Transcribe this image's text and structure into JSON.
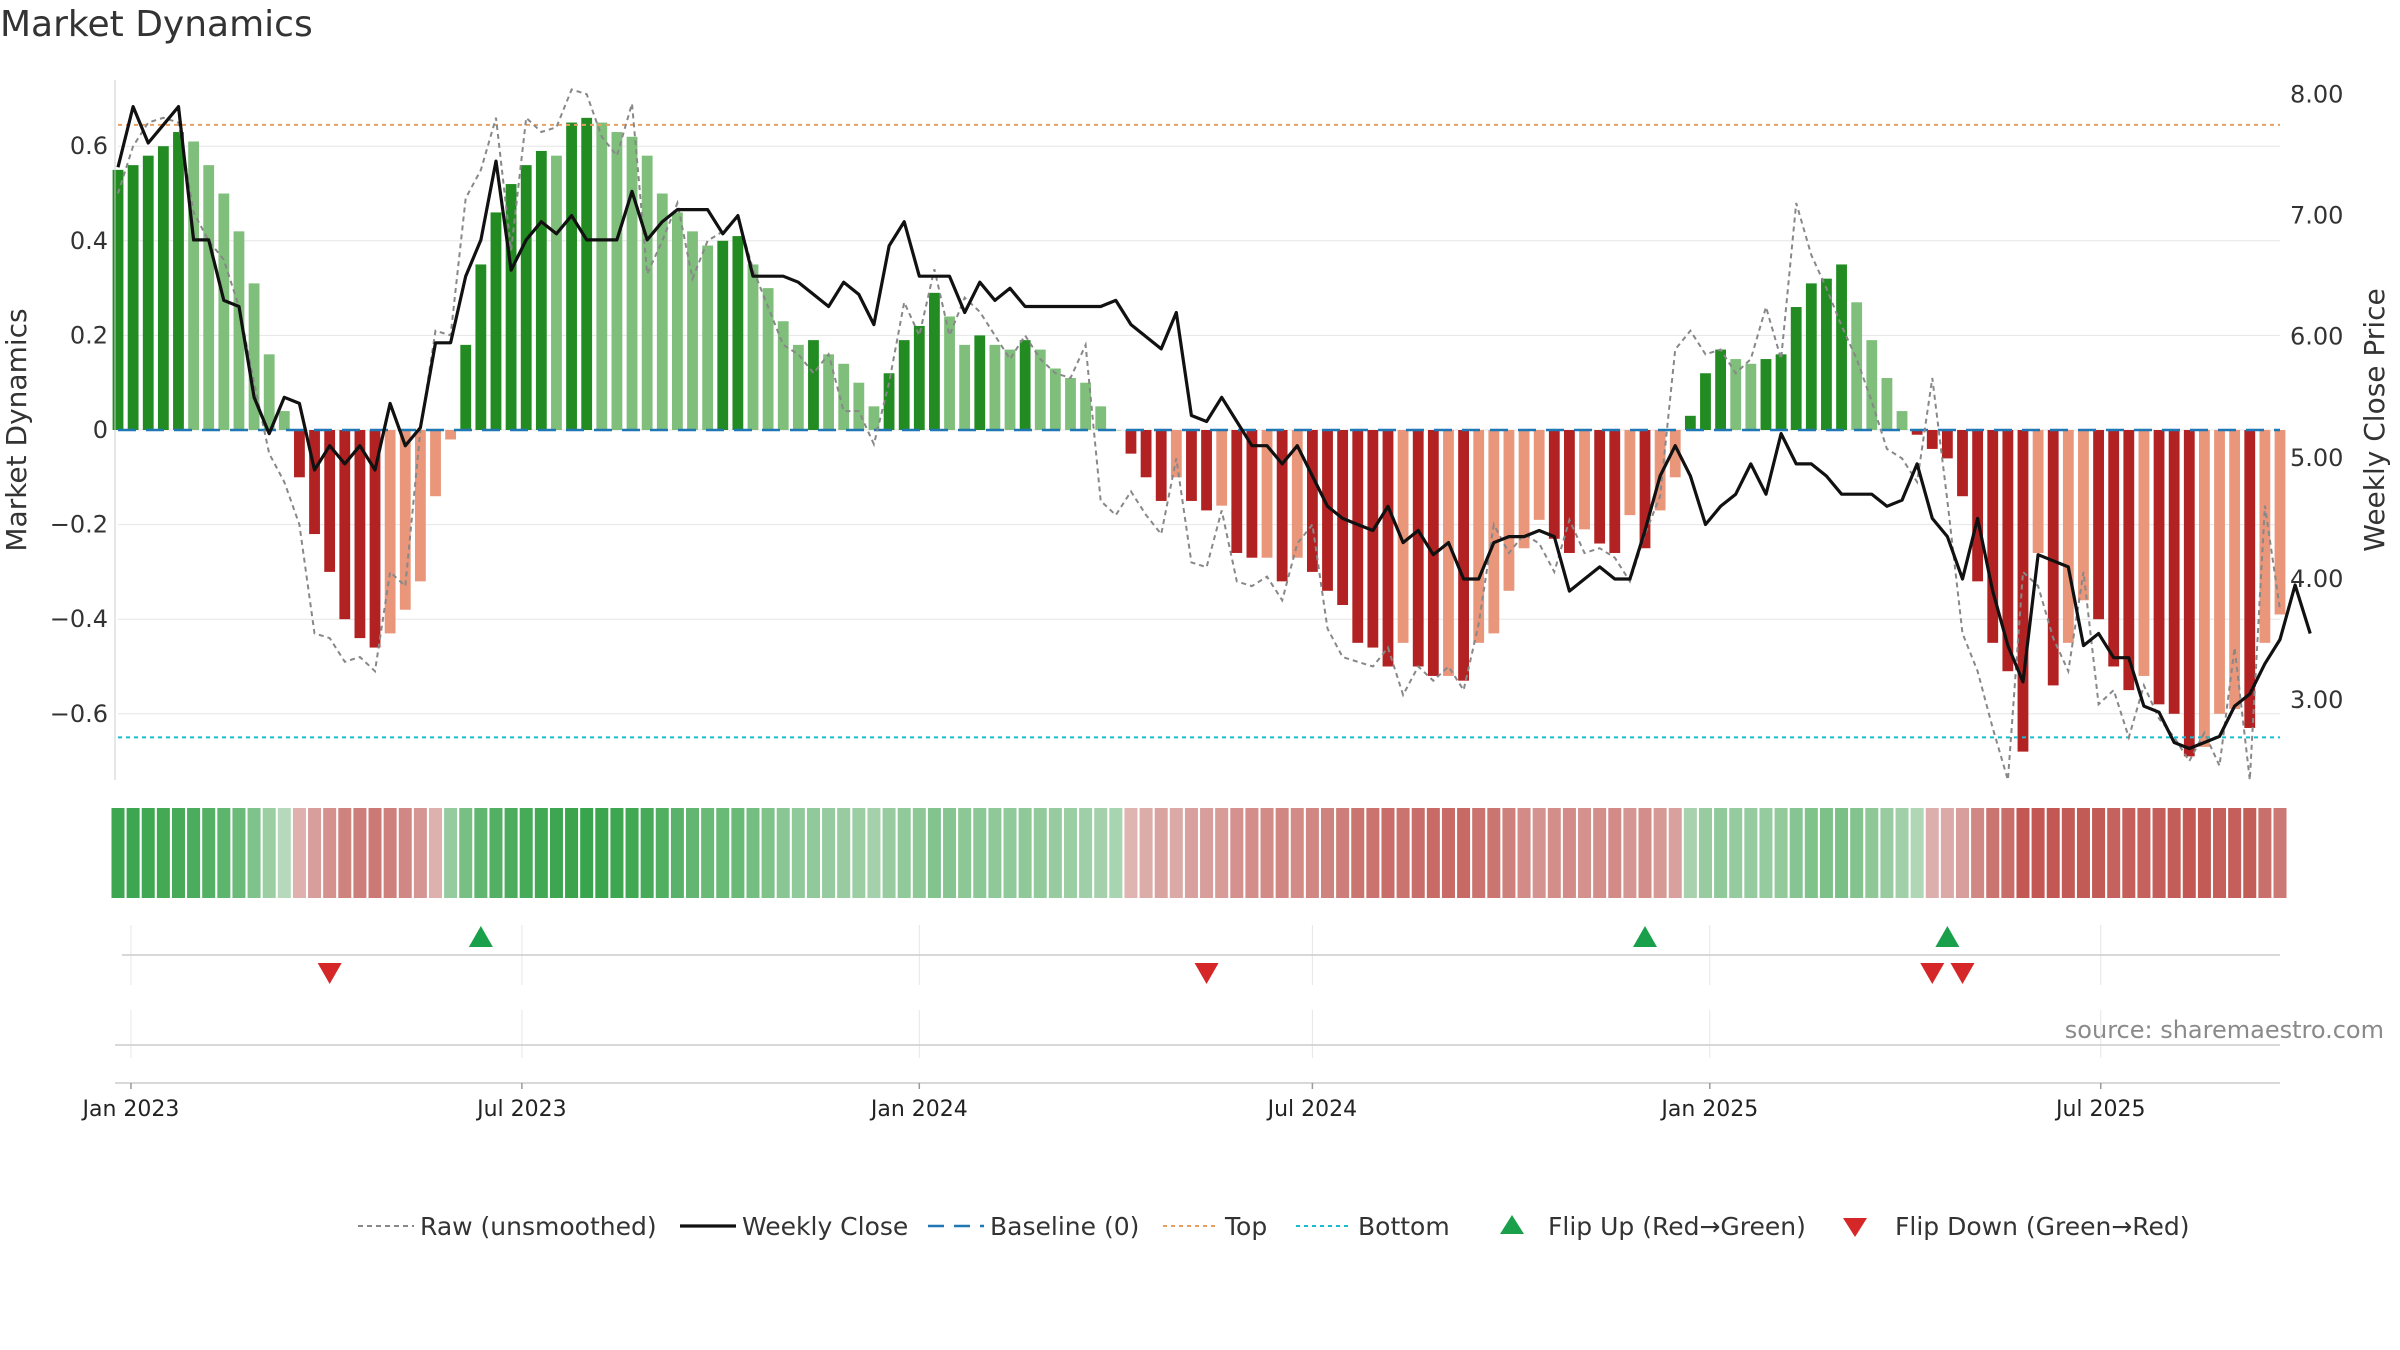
{
  "title": "Market Dynamics",
  "source_note": "source: sharemaestro.com",
  "colors": {
    "strong_green": "#228b22",
    "light_green": "#7fbf7b",
    "strong_red": "#b22222",
    "light_red": "#e9967a",
    "raw": "#888888",
    "close": "#111111",
    "baseline": "#1f77b4",
    "top": "#e8a060",
    "bottom": "#17becf",
    "flip_up": "#1aa04a",
    "flip_down": "#d62728"
  },
  "chart_data": {
    "type": "bar",
    "title": "Market Dynamics",
    "ylabel": "Market Dynamics",
    "y2label": "Weekly Close Price",
    "ylim": [
      -0.74,
      0.74
    ],
    "y2lim": [
      2.34,
      8.12
    ],
    "yticks": [
      -0.6,
      -0.4,
      -0.2,
      0,
      0.2,
      0.4,
      0.6
    ],
    "ytick_labels": [
      "−0.6",
      "−0.4",
      "−0.2",
      "0",
      "0.2",
      "0.4",
      "0.6"
    ],
    "y2ticks": [
      3.0,
      4.0,
      5.0,
      6.0,
      7.0,
      8.0
    ],
    "y2tick_labels": [
      "3.00",
      "4.00",
      "5.00",
      "6.00",
      "7.00",
      "8.00"
    ],
    "x_range": [
      "2022-12-26",
      "2025-09-22"
    ],
    "xticks": [
      {
        "date": "2023-01-01",
        "label": "Jan 2023"
      },
      {
        "date": "2023-07-01",
        "label": "Jul 2023"
      },
      {
        "date": "2024-01-01",
        "label": "Jan 2024"
      },
      {
        "date": "2024-07-01",
        "label": "Jul 2024"
      },
      {
        "date": "2025-01-01",
        "label": "Jan 2025"
      },
      {
        "date": "2025-07-01",
        "label": "Jul 2025"
      }
    ],
    "first_week": "2022-12-26",
    "weeks": 144,
    "series": [
      {
        "name": "Market Dynamics",
        "values": [
          0.55,
          0.56,
          0.58,
          0.6,
          0.63,
          0.61,
          0.56,
          0.5,
          0.42,
          0.31,
          0.16,
          0.04,
          -0.1,
          -0.22,
          -0.3,
          -0.4,
          -0.44,
          -0.46,
          -0.43,
          -0.38,
          -0.32,
          -0.14,
          -0.02,
          0.18,
          0.35,
          0.46,
          0.52,
          0.56,
          0.59,
          0.58,
          0.65,
          0.66,
          0.65,
          0.63,
          0.62,
          0.58,
          0.5,
          0.46,
          0.42,
          0.39,
          0.4,
          0.41,
          0.35,
          0.3,
          0.23,
          0.18,
          0.19,
          0.16,
          0.14,
          0.1,
          0.05,
          0.12,
          0.19,
          0.22,
          0.29,
          0.24,
          0.18,
          0.2,
          0.18,
          0.17,
          0.19,
          0.17,
          0.13,
          0.11,
          0.1,
          0.05,
          0.0,
          -0.05,
          -0.1,
          -0.15,
          -0.1,
          -0.15,
          -0.17,
          -0.16,
          -0.26,
          -0.27,
          -0.27,
          -0.32,
          -0.27,
          -0.3,
          -0.34,
          -0.37,
          -0.45,
          -0.46,
          -0.5,
          -0.45,
          -0.5,
          -0.52,
          -0.52,
          -0.53,
          -0.45,
          -0.43,
          -0.34,
          -0.25,
          -0.19,
          -0.23,
          -0.26,
          -0.21,
          -0.24,
          -0.26,
          -0.18,
          -0.25,
          -0.17,
          -0.1,
          0.03,
          0.12,
          0.17,
          0.15,
          0.14,
          0.15,
          0.16,
          0.26,
          0.31,
          0.32,
          0.35,
          0.27,
          0.19,
          0.11,
          0.04,
          -0.01,
          -0.04,
          -0.06,
          -0.14,
          -0.32,
          -0.45,
          -0.51,
          -0.68,
          -0.26,
          -0.54,
          -0.45,
          -0.36,
          -0.4,
          -0.5,
          -0.55,
          -0.52,
          -0.58,
          -0.6,
          -0.69,
          -0.67,
          -0.6,
          -0.59,
          -0.63,
          -0.45,
          -0.39
        ]
      },
      {
        "name": "Raw (unsmoothed)",
        "values": [
          0.5,
          0.6,
          0.65,
          0.66,
          0.65,
          0.46,
          0.4,
          0.36,
          0.26,
          0.1,
          -0.05,
          -0.11,
          -0.2,
          -0.43,
          -0.44,
          -0.49,
          -0.48,
          -0.51,
          -0.3,
          -0.33,
          0.0,
          0.21,
          0.2,
          0.49,
          0.55,
          0.66,
          0.38,
          0.66,
          0.63,
          0.64,
          0.72,
          0.71,
          0.62,
          0.58,
          0.69,
          0.33,
          0.4,
          0.48,
          0.32,
          0.4,
          0.42,
          0.45,
          0.34,
          0.26,
          0.18,
          0.16,
          0.12,
          0.16,
          0.04,
          0.04,
          -0.03,
          0.1,
          0.27,
          0.2,
          0.34,
          0.2,
          0.28,
          0.25,
          0.2,
          0.15,
          0.2,
          0.15,
          0.12,
          0.11,
          0.18,
          -0.15,
          -0.18,
          -0.13,
          -0.18,
          -0.22,
          -0.06,
          -0.28,
          -0.29,
          -0.17,
          -0.32,
          -0.33,
          -0.31,
          -0.36,
          -0.24,
          -0.2,
          -0.42,
          -0.48,
          -0.49,
          -0.5,
          -0.46,
          -0.56,
          -0.5,
          -0.53,
          -0.5,
          -0.55,
          -0.41,
          -0.2,
          -0.26,
          -0.22,
          -0.24,
          -0.3,
          -0.19,
          -0.26,
          -0.25,
          -0.27,
          -0.32,
          -0.22,
          -0.14,
          0.17,
          0.21,
          0.16,
          0.17,
          0.12,
          0.15,
          0.26,
          0.15,
          0.48,
          0.37,
          0.3,
          0.22,
          0.15,
          0.06,
          -0.04,
          -0.06,
          -0.11,
          0.11,
          -0.15,
          -0.43,
          -0.51,
          -0.63,
          -0.74,
          -0.3,
          -0.33,
          -0.44,
          -0.51,
          -0.3,
          -0.58,
          -0.55,
          -0.65,
          -0.54,
          -0.61,
          -0.65,
          -0.7,
          -0.64,
          -0.71,
          -0.46,
          -0.74,
          -0.16,
          -0.38
        ]
      },
      {
        "name": "Weekly Close",
        "values": [
          7.4,
          7.9,
          7.6,
          7.75,
          7.9,
          6.8,
          6.8,
          6.3,
          6.25,
          5.5,
          5.2,
          5.5,
          5.45,
          4.9,
          5.1,
          4.95,
          5.1,
          4.9,
          5.45,
          5.1,
          5.25,
          5.95,
          5.95,
          6.5,
          6.8,
          7.45,
          6.55,
          6.8,
          6.95,
          6.85,
          7.0,
          6.8,
          6.8,
          6.8,
          7.2,
          6.8,
          6.95,
          7.05,
          7.05,
          7.05,
          6.85,
          7.0,
          6.5,
          6.5,
          6.5,
          6.45,
          6.35,
          6.25,
          6.45,
          6.35,
          6.1,
          6.75,
          6.95,
          6.5,
          6.5,
          6.5,
          6.2,
          6.45,
          6.3,
          6.4,
          6.25,
          6.25,
          6.25,
          6.25,
          6.25,
          6.25,
          6.3,
          6.1,
          6.0,
          5.9,
          6.2,
          5.35,
          5.3,
          5.5,
          5.3,
          5.1,
          5.1,
          4.95,
          5.1,
          4.85,
          4.6,
          4.5,
          4.45,
          4.4,
          4.6,
          4.3,
          4.4,
          4.2,
          4.3,
          4.0,
          4.0,
          4.3,
          4.35,
          4.35,
          4.4,
          4.35,
          3.9,
          4.0,
          4.1,
          4.0,
          4.0,
          4.4,
          4.85,
          5.1,
          4.85,
          4.45,
          4.6,
          4.7,
          4.95,
          4.7,
          5.2,
          4.95,
          4.95,
          4.85,
          4.7,
          4.7,
          4.7,
          4.6,
          4.65,
          4.95,
          4.5,
          4.35,
          4.0,
          4.5,
          3.9,
          3.45,
          3.15,
          4.2,
          4.15,
          4.1,
          3.45,
          3.55,
          3.35,
          3.35,
          2.95,
          2.9,
          2.65,
          2.6,
          2.65,
          2.7,
          2.95,
          3.05,
          3.3,
          3.5,
          3.95,
          3.55
        ]
      }
    ],
    "top_line": 0.645,
    "bottom_line": -0.65,
    "baseline": 0,
    "regime_strip": [
      0.9,
      0.9,
      0.88,
      0.86,
      0.84,
      0.8,
      0.74,
      0.68,
      0.58,
      0.44,
      0.25,
      0.08,
      -0.14,
      -0.28,
      -0.38,
      -0.48,
      -0.52,
      -0.55,
      -0.5,
      -0.44,
      -0.34,
      -0.14,
      0.3,
      0.5,
      0.66,
      0.75,
      0.8,
      0.84,
      0.87,
      0.9,
      0.92,
      0.93,
      0.92,
      0.9,
      0.88,
      0.84,
      0.76,
      0.7,
      0.64,
      0.6,
      0.6,
      0.6,
      0.52,
      0.45,
      0.38,
      0.33,
      0.33,
      0.3,
      0.28,
      0.25,
      0.2,
      0.28,
      0.33,
      0.35,
      0.42,
      0.4,
      0.36,
      0.36,
      0.34,
      0.33,
      0.34,
      0.32,
      0.28,
      0.26,
      0.24,
      0.2,
      0.16,
      -0.12,
      -0.18,
      -0.24,
      -0.2,
      -0.26,
      -0.28,
      -0.3,
      -0.38,
      -0.4,
      -0.42,
      -0.46,
      -0.42,
      -0.45,
      -0.48,
      -0.52,
      -0.58,
      -0.6,
      -0.64,
      -0.6,
      -0.64,
      -0.66,
      -0.66,
      -0.67,
      -0.6,
      -0.58,
      -0.5,
      -0.42,
      -0.36,
      -0.4,
      -0.42,
      -0.38,
      -0.4,
      -0.42,
      -0.34,
      -0.4,
      -0.32,
      -0.26,
      0.18,
      0.28,
      0.33,
      0.3,
      0.3,
      0.3,
      0.32,
      0.4,
      0.45,
      0.46,
      0.48,
      0.42,
      0.35,
      0.28,
      0.22,
      0.12,
      -0.16,
      -0.2,
      -0.28,
      -0.45,
      -0.58,
      -0.64,
      -0.8,
      -0.8,
      -0.8,
      -0.78,
      -0.78,
      -0.78,
      -0.72,
      -0.74,
      -0.72,
      -0.75,
      -0.76,
      -0.8,
      -0.78,
      -0.74,
      -0.74,
      -0.76,
      -0.62,
      -0.55
    ],
    "flip_up_dates": [
      "2023-06-12",
      "2024-12-02",
      "2025-04-21"
    ],
    "flip_down_dates": [
      "2023-04-03",
      "2024-05-13",
      "2025-04-14",
      "2025-04-28"
    ],
    "legend": [
      {
        "label": "Raw (unsmoothed)",
        "kind": "dashed-gray"
      },
      {
        "label": "Weekly Close",
        "kind": "solid-black"
      },
      {
        "label": "Baseline (0)",
        "kind": "dashed-blue"
      },
      {
        "label": "Top",
        "kind": "dotted-orange"
      },
      {
        "label": "Bottom",
        "kind": "dotted-cyan"
      },
      {
        "label": "Flip Up (Red→Green)",
        "kind": "triangle-up"
      },
      {
        "label": "Flip Down (Green→Red)",
        "kind": "triangle-down"
      }
    ],
    "legend_position": "bottom-center",
    "grid": true
  }
}
